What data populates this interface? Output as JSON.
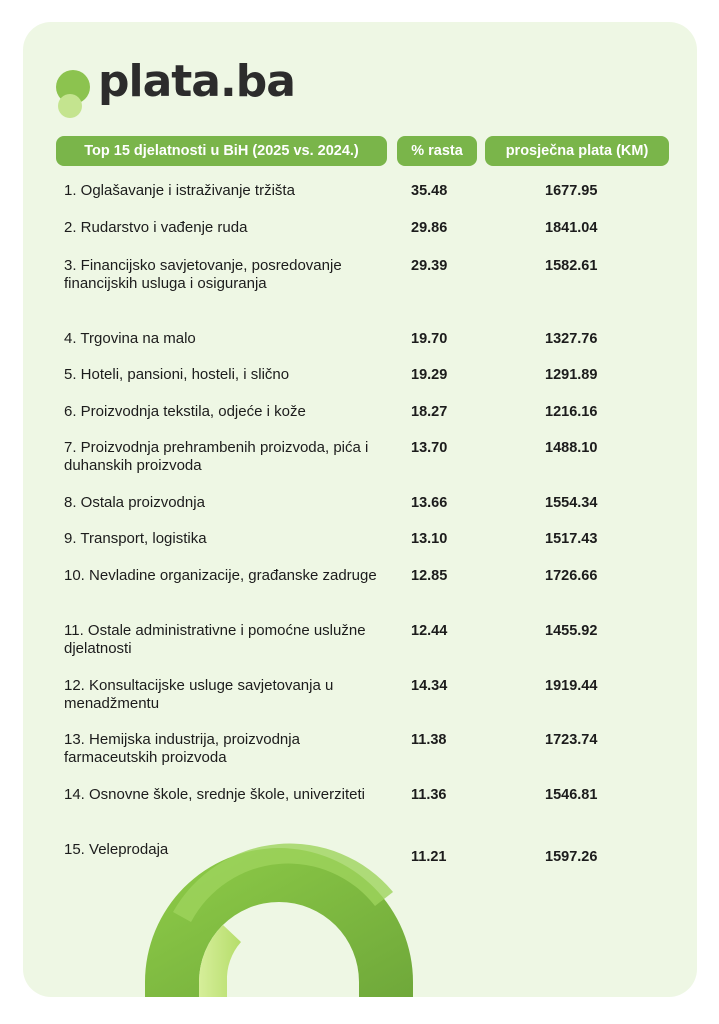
{
  "brand": {
    "name": "plata.ba"
  },
  "headers": {
    "activity": "Top 15 djelatnosti u BiH (2025 vs. 2024.)",
    "growth": "% rasta",
    "salary": "prosječna plata (KM)"
  },
  "rows": [
    {
      "name": "1. Oglašavanje i istraživanje tržišta",
      "growth": "35.48",
      "salary": "1677.95"
    },
    {
      "name": "2. Rudarstvo i vađenje ruda",
      "growth": "29.86",
      "salary": "1841.04"
    },
    {
      "name": "3. Financijsko savjetovanje, posredovanje financijskih usluga i osiguranja",
      "growth": "29.39",
      "salary": "1582.61"
    },
    {
      "name": "4. Trgovina na malo",
      "growth": "19.70",
      "salary": "1327.76"
    },
    {
      "name": "5. Hoteli, pansioni, hosteli, i slično",
      "growth": "19.29",
      "salary": "1291.89"
    },
    {
      "name": "6. Proizvodnja tekstila, odjeće i kože",
      "growth": "18.27",
      "salary": "1216.16"
    },
    {
      "name": "7. Proizvodnja prehrambenih proizvoda, pića i duhanskih proizvoda",
      "growth": "13.70",
      "salary": "1488.10"
    },
    {
      "name": "8. Ostala proizvodnja",
      "growth": "13.66",
      "salary": "1554.34"
    },
    {
      "name": "9. Transport, logistika",
      "growth": "13.10",
      "salary": "1517.43"
    },
    {
      "name": "10. Nevladine organizacije, građanske zadruge",
      "growth": "12.85",
      "salary": "1726.66"
    },
    {
      "name": "11. Ostale administrativne i pomoćne uslužne djelatnosti",
      "growth": "12.44",
      "salary": "1455.92"
    },
    {
      "name": "12. Konsultacijske usluge savjetovanja u menadžmentu",
      "growth": "14.34",
      "salary": "1919.44"
    },
    {
      "name": "13. Hemijska industrija, proizvodnja farmaceutskih proizvoda",
      "growth": "11.38",
      "salary": "1723.74"
    },
    {
      "name": "14. Osnovne škole, srednje škole, univerziteti",
      "growth": "11.36",
      "salary": "1546.81"
    },
    {
      "name": "15. Veleprodaja",
      "growth": "11.21",
      "salary": "1597.26"
    }
  ]
}
